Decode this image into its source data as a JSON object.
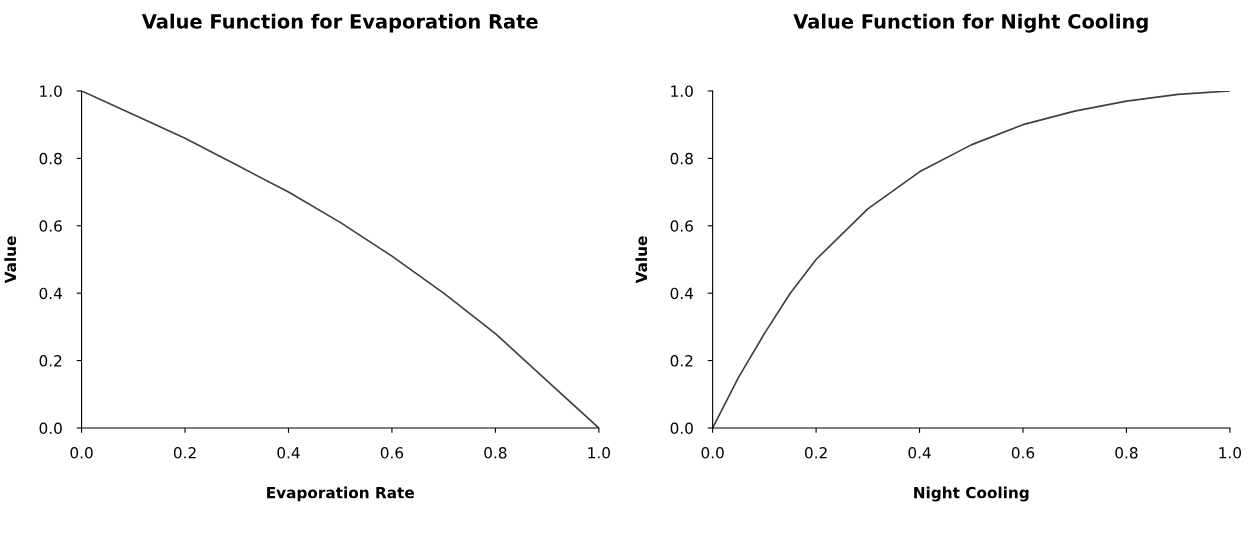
{
  "chart_data": [
    {
      "type": "line",
      "title": "Value Function for Evaporation Rate",
      "xlabel": "Evaporation Rate",
      "ylabel": "Value",
      "x": [
        0.0,
        0.1,
        0.2,
        0.3,
        0.4,
        0.5,
        0.6,
        0.7,
        0.8,
        0.9,
        1.0
      ],
      "series": [
        {
          "color": "#404040",
          "values": [
            1.0,
            0.93,
            0.86,
            0.78,
            0.7,
            0.61,
            0.51,
            0.4,
            0.28,
            0.14,
            0.0
          ]
        }
      ],
      "xlim": [
        0,
        1
      ],
      "ylim": [
        0,
        1
      ],
      "xticks": [
        {
          "value": 0,
          "label": "0.0"
        },
        {
          "value": 0.2,
          "label": "0.2"
        },
        {
          "value": 0.4,
          "label": "0.4"
        },
        {
          "value": 0.6,
          "label": "0.6"
        },
        {
          "value": 0.8,
          "label": "0.8"
        },
        {
          "value": 1,
          "label": "1.0"
        }
      ],
      "yticks": [
        {
          "value": 0,
          "label": "0.0"
        },
        {
          "value": 0.2,
          "label": "0.2"
        },
        {
          "value": 0.4,
          "label": "0.4"
        },
        {
          "value": 0.6,
          "label": "0.6"
        },
        {
          "value": 0.8,
          "label": "0.8"
        },
        {
          "value": 1,
          "label": "1.0"
        }
      ]
    },
    {
      "type": "line",
      "title": "Value Function for Night Cooling",
      "xlabel": "Night Cooling",
      "ylabel": "Value",
      "x": [
        0.0,
        0.05,
        0.1,
        0.15,
        0.2,
        0.3,
        0.4,
        0.5,
        0.6,
        0.7,
        0.8,
        0.9,
        1.0
      ],
      "series": [
        {
          "color": "#404040",
          "values": [
            0.0,
            0.15,
            0.28,
            0.4,
            0.5,
            0.65,
            0.76,
            0.84,
            0.9,
            0.94,
            0.97,
            0.99,
            1.0
          ]
        }
      ],
      "xlim": [
        0,
        1
      ],
      "ylim": [
        0,
        1
      ],
      "xticks": [
        {
          "value": 0,
          "label": "0.0"
        },
        {
          "value": 0.2,
          "label": "0.2"
        },
        {
          "value": 0.4,
          "label": "0.4"
        },
        {
          "value": 0.6,
          "label": "0.6"
        },
        {
          "value": 0.8,
          "label": "0.8"
        },
        {
          "value": 1,
          "label": "1.0"
        }
      ],
      "yticks": [
        {
          "value": 0,
          "label": "0.0"
        },
        {
          "value": 0.2,
          "label": "0.2"
        },
        {
          "value": 0.4,
          "label": "0.4"
        },
        {
          "value": 0.6,
          "label": "0.6"
        },
        {
          "value": 0.8,
          "label": "0.8"
        },
        {
          "value": 1,
          "label": "1.0"
        }
      ]
    }
  ]
}
